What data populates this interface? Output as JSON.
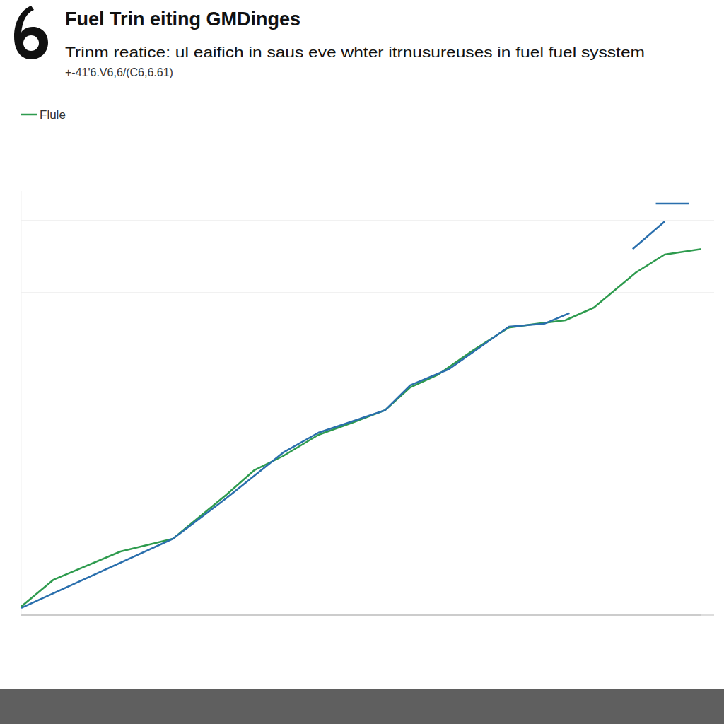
{
  "chart_data": {
    "type": "line",
    "title": "Fuel Trin eiting GMDinges",
    "subtitle": "Trinm reatice: ul eaifich in saus eve whter itrnusureuses in fuel fuel sysstem",
    "annotations": [
      "+-41'6.V6,6/(C6,6.61)"
    ],
    "series": [
      {
        "name": "Flule",
        "color": "#2e9b4e",
        "x": [
          0,
          4.7,
          14.6,
          22.3,
          30.1,
          34.3,
          38.5,
          43.7,
          48.9,
          53.5,
          57.2,
          61.3,
          66.5,
          71.7,
          75.9,
          80,
          84.2,
          90.4,
          94.6,
          100
        ],
        "values": [
          2,
          8.3,
          15,
          18,
          28.3,
          34.2,
          37.5,
          42.5,
          45.5,
          48.3,
          53.7,
          56.7,
          62.5,
          67.8,
          68.7,
          69.5,
          72.5,
          80.8,
          85,
          86.3
        ]
      },
      {
        "color": "#2a6fad",
        "x": [
          0,
          22.3,
          30.1,
          38.5,
          43.7,
          48.9,
          53.5,
          57.2,
          62.9,
          71.7,
          76.9,
          80.6,
          85,
          89.9,
          94.6,
          95,
          93.3,
          98.2
        ],
        "values": [
          1.7,
          18,
          27.5,
          38.3,
          43,
          45.8,
          48.3,
          54.2,
          58,
          68,
          68.7,
          71.2,
          null,
          86.3,
          92.8,
          null,
          97,
          97
        ]
      }
    ],
    "xlim": [
      0,
      100
    ],
    "ylim": [
      0,
      100
    ],
    "yticks": [
      0,
      76,
      93
    ],
    "grid": true,
    "legend": "top-left",
    "tick_labels": false
  }
}
